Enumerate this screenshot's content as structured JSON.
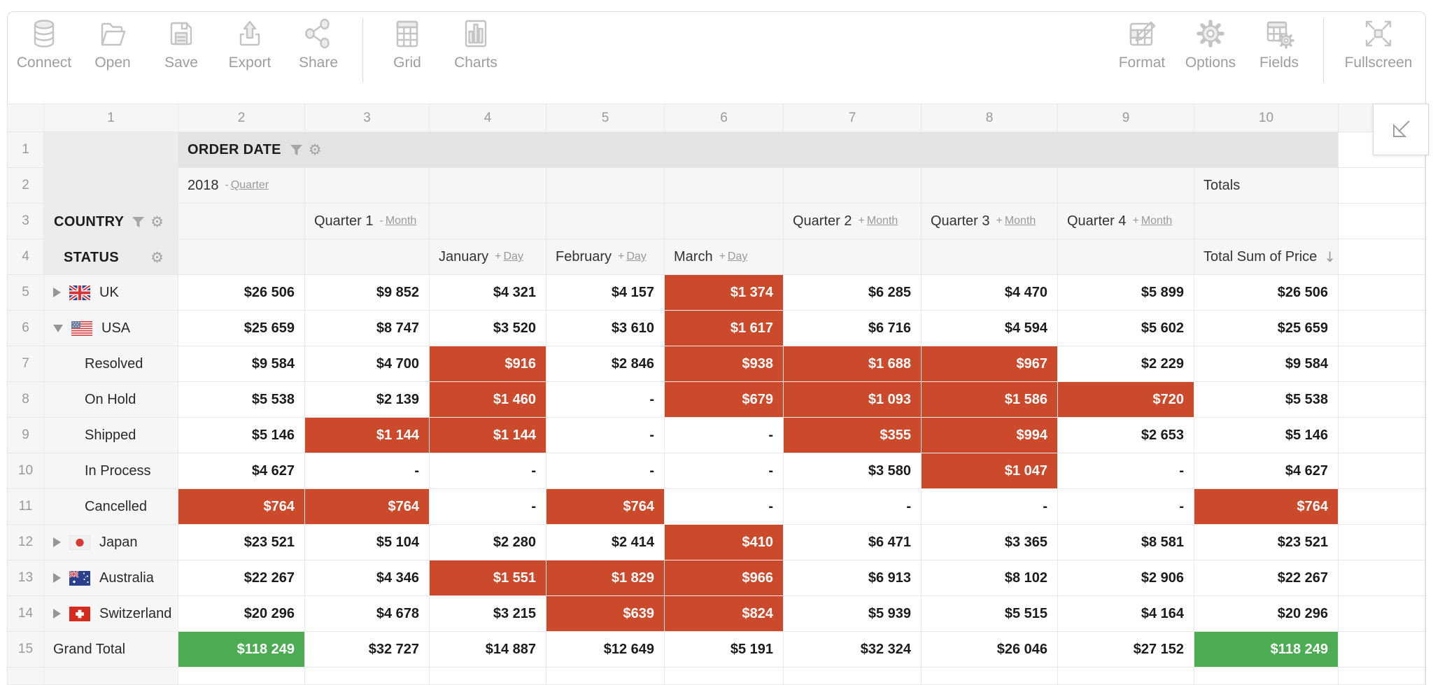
{
  "toolbar": {
    "items": [
      {
        "label": "Connect",
        "icon": "database-icon"
      },
      {
        "label": "Open",
        "icon": "open-folder-icon"
      },
      {
        "label": "Save",
        "icon": "save-icon"
      },
      {
        "label": "Export",
        "icon": "export-icon"
      },
      {
        "label": "Share",
        "icon": "share-icon"
      },
      {
        "label": "Grid",
        "icon": "grid-view-icon"
      },
      {
        "label": "Charts",
        "icon": "charts-view-icon"
      },
      {
        "label": "Format",
        "icon": "format-cells-icon"
      },
      {
        "label": "Options",
        "icon": "options-gear-icon"
      },
      {
        "label": "Fields",
        "icon": "fields-icon"
      },
      {
        "label": "Fullscreen",
        "icon": "fullscreen-icon"
      }
    ]
  },
  "colors": {
    "highlight_red": "#CA4A2B",
    "highlight_green": "#4BAC53",
    "header_band_gray": "#E3E3E3",
    "header_light_gray": "#F6F6F6"
  },
  "grid": {
    "column_numbers": [
      "1",
      "2",
      "3",
      "4",
      "5",
      "6",
      "7",
      "8",
      "9",
      "10"
    ],
    "headers": {
      "order_date": {
        "label": "ORDER DATE",
        "icons": [
          "filter-icon",
          "gear-icon"
        ]
      },
      "year": {
        "label": "2018",
        "sign": "-",
        "link": "Quarter"
      },
      "totals_label": "Totals",
      "country": {
        "label": "COUNTRY",
        "icons": [
          "filter-icon",
          "gear-icon"
        ]
      },
      "status": {
        "label": "STATUS",
        "icons": [
          "gear-icon"
        ]
      },
      "quarters": [
        {
          "label": "Quarter 1",
          "sign": "-",
          "link": "Month"
        },
        {
          "label": "Quarter 2",
          "sign": "+",
          "link": "Month"
        },
        {
          "label": "Quarter 3",
          "sign": "+",
          "link": "Month"
        },
        {
          "label": "Quarter 4",
          "sign": "+",
          "link": "Month"
        }
      ],
      "months": [
        {
          "label": "January",
          "sign": "+",
          "link": "Day"
        },
        {
          "label": "February",
          "sign": "+",
          "link": "Day"
        },
        {
          "label": "March",
          "sign": "+",
          "link": "Day"
        }
      ],
      "total_sum": {
        "label": "Total Sum of Price",
        "sort_glyph": "↓",
        "sort_icon": "sort-desc-icon"
      }
    },
    "rows": [
      {
        "num": "5",
        "label": "UK",
        "flag": "uk",
        "expand": "collapsed",
        "type": "country",
        "cells": [
          {
            "v": "$26 506"
          },
          {
            "v": "$9 852"
          },
          {
            "v": "$4 321"
          },
          {
            "v": "$4 157"
          },
          {
            "v": "$1 374",
            "hl": "red"
          },
          {
            "v": "$6 285"
          },
          {
            "v": "$4 470"
          },
          {
            "v": "$5 899"
          },
          {
            "v": "$26 506"
          }
        ]
      },
      {
        "num": "6",
        "label": "USA",
        "flag": "usa",
        "expand": "expanded",
        "type": "country",
        "cells": [
          {
            "v": "$25 659"
          },
          {
            "v": "$8 747"
          },
          {
            "v": "$3 520"
          },
          {
            "v": "$3 610"
          },
          {
            "v": "$1 617",
            "hl": "red"
          },
          {
            "v": "$6 716"
          },
          {
            "v": "$4 594"
          },
          {
            "v": "$5 602"
          },
          {
            "v": "$25 659"
          }
        ]
      },
      {
        "num": "7",
        "label": "Resolved",
        "type": "status",
        "cells": [
          {
            "v": "$9 584"
          },
          {
            "v": "$4 700"
          },
          {
            "v": "$916",
            "hl": "red"
          },
          {
            "v": "$2 846"
          },
          {
            "v": "$938",
            "hl": "red"
          },
          {
            "v": "$1 688",
            "hl": "red"
          },
          {
            "v": "$967",
            "hl": "red"
          },
          {
            "v": "$2 229"
          },
          {
            "v": "$9 584"
          }
        ]
      },
      {
        "num": "8",
        "label": "On Hold",
        "type": "status",
        "cells": [
          {
            "v": "$5 538"
          },
          {
            "v": "$2 139"
          },
          {
            "v": "$1 460",
            "hl": "red"
          },
          {
            "v": "-"
          },
          {
            "v": "$679",
            "hl": "red"
          },
          {
            "v": "$1 093",
            "hl": "red"
          },
          {
            "v": "$1 586",
            "hl": "red"
          },
          {
            "v": "$720",
            "hl": "red"
          },
          {
            "v": "$5 538"
          }
        ]
      },
      {
        "num": "9",
        "label": "Shipped",
        "type": "status",
        "cells": [
          {
            "v": "$5 146"
          },
          {
            "v": "$1 144",
            "hl": "red"
          },
          {
            "v": "$1 144",
            "hl": "red"
          },
          {
            "v": "-"
          },
          {
            "v": "-"
          },
          {
            "v": "$355",
            "hl": "red"
          },
          {
            "v": "$994",
            "hl": "red"
          },
          {
            "v": "$2 653"
          },
          {
            "v": "$5 146"
          }
        ]
      },
      {
        "num": "10",
        "label": "In Process",
        "type": "status",
        "cells": [
          {
            "v": "$4 627"
          },
          {
            "v": "-"
          },
          {
            "v": "-"
          },
          {
            "v": "-"
          },
          {
            "v": "-"
          },
          {
            "v": "$3 580"
          },
          {
            "v": "$1 047",
            "hl": "red"
          },
          {
            "v": "-"
          },
          {
            "v": "$4 627"
          }
        ]
      },
      {
        "num": "11",
        "label": "Cancelled",
        "type": "status",
        "cells": [
          {
            "v": "$764",
            "hl": "red"
          },
          {
            "v": "$764",
            "hl": "red"
          },
          {
            "v": "-"
          },
          {
            "v": "$764",
            "hl": "red"
          },
          {
            "v": "-"
          },
          {
            "v": "-"
          },
          {
            "v": "-"
          },
          {
            "v": "-"
          },
          {
            "v": "$764",
            "hl": "red"
          }
        ]
      },
      {
        "num": "12",
        "label": "Japan",
        "flag": "japan",
        "expand": "collapsed",
        "type": "country",
        "cells": [
          {
            "v": "$23 521"
          },
          {
            "v": "$5 104"
          },
          {
            "v": "$2 280"
          },
          {
            "v": "$2 414"
          },
          {
            "v": "$410",
            "hl": "red"
          },
          {
            "v": "$6 471"
          },
          {
            "v": "$3 365"
          },
          {
            "v": "$8 581"
          },
          {
            "v": "$23 521"
          }
        ]
      },
      {
        "num": "13",
        "label": "Australia",
        "flag": "australia",
        "expand": "collapsed",
        "type": "country",
        "cells": [
          {
            "v": "$22 267"
          },
          {
            "v": "$4 346"
          },
          {
            "v": "$1 551",
            "hl": "red"
          },
          {
            "v": "$1 829",
            "hl": "red"
          },
          {
            "v": "$966",
            "hl": "red"
          },
          {
            "v": "$6 913"
          },
          {
            "v": "$8 102"
          },
          {
            "v": "$2 906"
          },
          {
            "v": "$22 267"
          }
        ]
      },
      {
        "num": "14",
        "label": "Switzerland",
        "flag": "switzerland",
        "expand": "collapsed",
        "type": "country",
        "cells": [
          {
            "v": "$20 296"
          },
          {
            "v": "$4 678"
          },
          {
            "v": "$3 215"
          },
          {
            "v": "$639",
            "hl": "red"
          },
          {
            "v": "$824",
            "hl": "red"
          },
          {
            "v": "$5 939"
          },
          {
            "v": "$5 515"
          },
          {
            "v": "$4 164"
          },
          {
            "v": "$20 296"
          }
        ]
      },
      {
        "num": "15",
        "label": "Grand Total",
        "type": "grand-total",
        "cells": [
          {
            "v": "$118 249",
            "hl": "green"
          },
          {
            "v": "$32 727"
          },
          {
            "v": "$14 887"
          },
          {
            "v": "$12 649"
          },
          {
            "v": "$5 191"
          },
          {
            "v": "$32 324"
          },
          {
            "v": "$26 046"
          },
          {
            "v": "$27 152"
          },
          {
            "v": "$118 249",
            "hl": "green"
          }
        ]
      }
    ]
  },
  "collapse_button": {
    "icon": "collapse-arrow-icon"
  }
}
